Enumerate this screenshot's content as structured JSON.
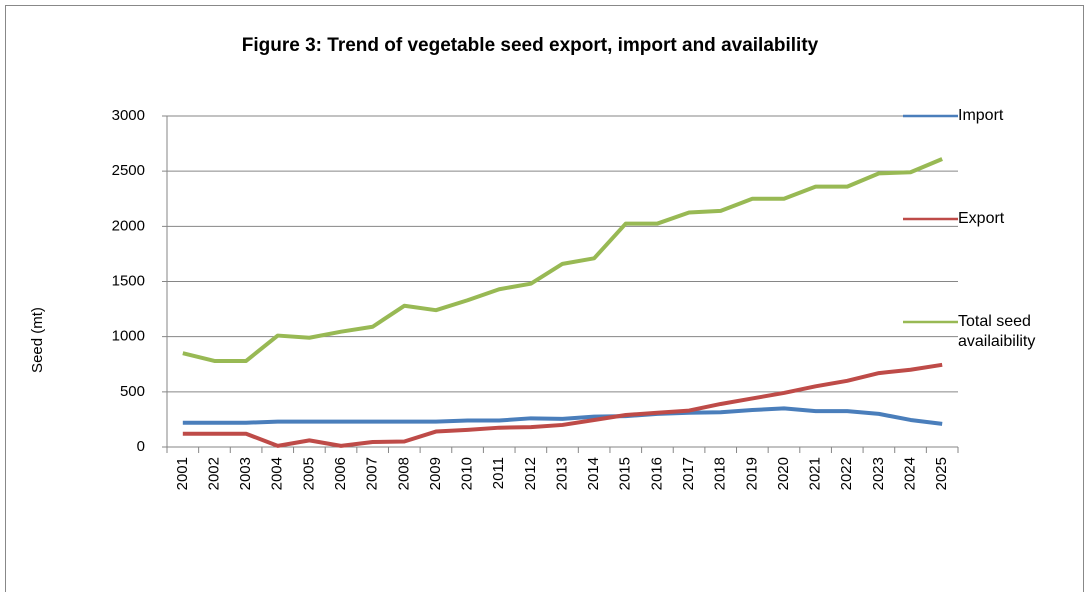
{
  "chart_data": {
    "type": "line",
    "title": "Figure 3: Trend of vegetable seed export, import and availability",
    "y_label": "Seed (mt)",
    "categories": [
      "2001",
      "2002",
      "2003",
      "2004",
      "2005",
      "2006",
      "2007",
      "2008",
      "2009",
      "2010",
      "2011",
      "2012",
      "2013",
      "2014",
      "2015",
      "2016",
      "2017",
      "2018",
      "2019",
      "2020",
      "2021",
      "2022",
      "2023",
      "2024",
      "2025"
    ],
    "series": [
      {
        "name": "Import",
        "color": "#4a7ebb",
        "values": [
          220,
          220,
          220,
          230,
          230,
          230,
          230,
          230,
          230,
          240,
          240,
          260,
          255,
          275,
          280,
          300,
          310,
          315,
          335,
          350,
          325,
          325,
          300,
          245,
          210
        ]
      },
      {
        "name": "Export",
        "color": "#be4b48",
        "values": [
          120,
          120,
          120,
          10,
          60,
          10,
          45,
          50,
          140,
          155,
          175,
          180,
          200,
          245,
          290,
          310,
          330,
          390,
          440,
          490,
          550,
          600,
          670,
          700,
          745
        ]
      },
      {
        "name": "Total seed availaibility",
        "color": "#98b954",
        "values": [
          850,
          780,
          780,
          1010,
          990,
          1045,
          1090,
          1280,
          1240,
          1330,
          1430,
          1480,
          1660,
          1710,
          2025,
          2025,
          2125,
          2140,
          2250,
          2250,
          2360,
          2360,
          2480,
          2490,
          2610
        ]
      }
    ],
    "ylim": [
      0,
      3000
    ],
    "yticks": [
      0,
      500,
      1000,
      1500,
      2000,
      2500,
      3000
    ],
    "grid": true,
    "legend": "right"
  }
}
